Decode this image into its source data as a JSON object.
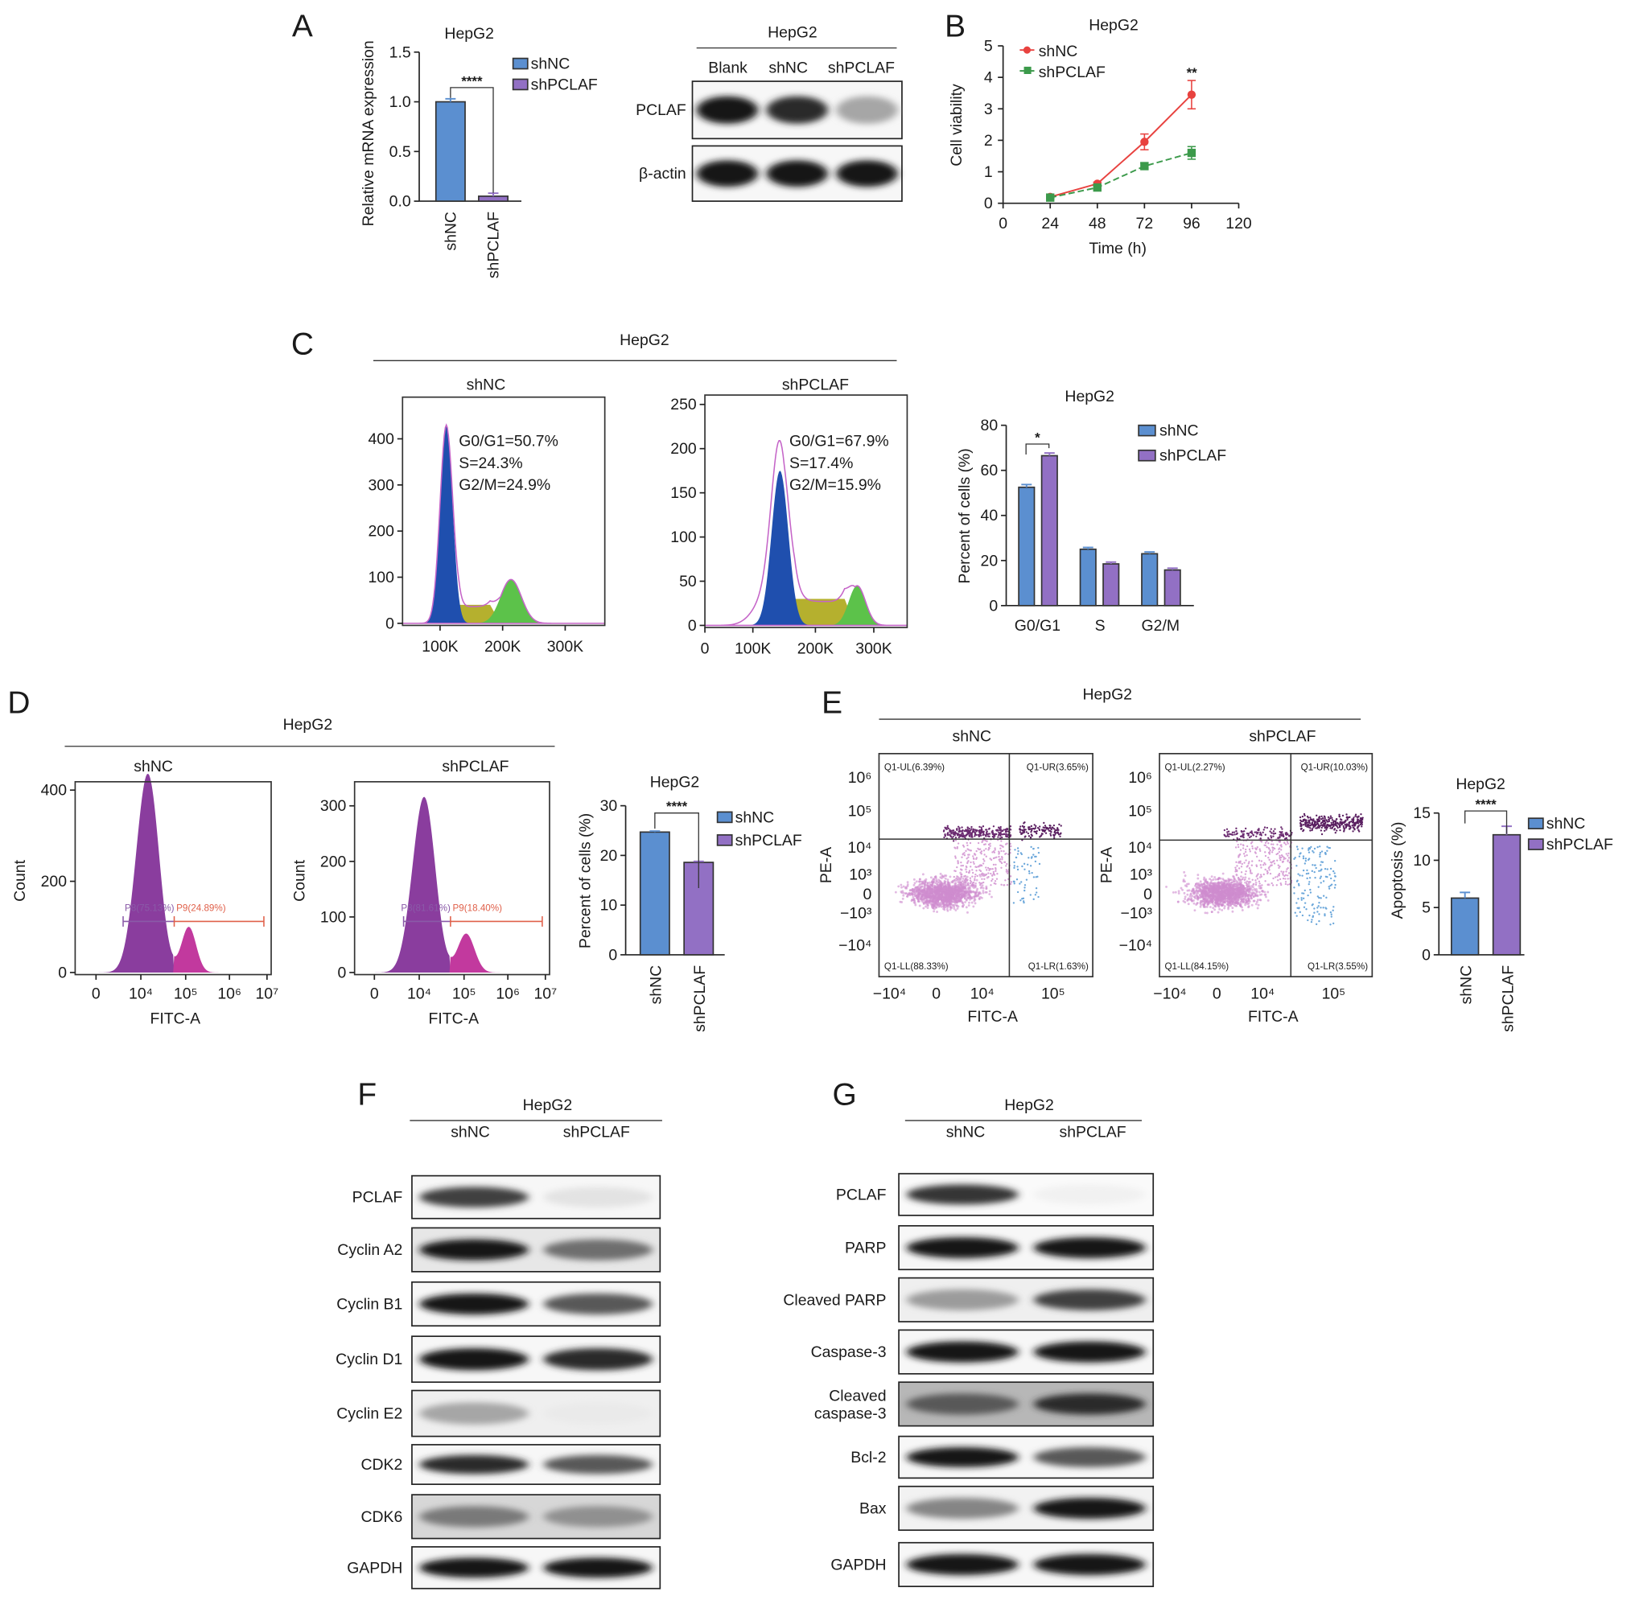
{
  "panel_labels": {
    "A": "A",
    "B": "B",
    "C": "C",
    "D": "D",
    "E": "E",
    "F": "F",
    "G": "G"
  },
  "colors": {
    "shNC": "#5b8fd0",
    "shPCLAF": "#9270c4",
    "line_shNC": "#e8423f",
    "line_shPCLAF": "#3c9a4b",
    "g1": "#1f4fae",
    "s": "#b5b02e",
    "g2": "#5cc24a",
    "outline": "#c565c8",
    "p8": "#8a3d9e",
    "p9": "#c2399e"
  },
  "chart_data": [
    {
      "id": "A_mrna",
      "type": "bar",
      "title": "HepG2",
      "ylabel": "Relative mRNA expression",
      "categories": [
        "shNC",
        "shPCLAF"
      ],
      "values": [
        1.0,
        0.05
      ],
      "errors": [
        0.03,
        0.03
      ],
      "ylim": [
        0,
        1.5
      ],
      "yticks": [
        "0.0",
        "0.5",
        "1.0",
        "1.5"
      ],
      "legend": [
        "shNC",
        "shPCLAF"
      ],
      "significance": "****"
    },
    {
      "id": "B_viability",
      "type": "line",
      "title": "HepG2",
      "xlabel": "Time (h)",
      "ylabel": "Cell viability",
      "x": [
        24,
        48,
        72,
        96
      ],
      "xlim": [
        0,
        120
      ],
      "ylim": [
        0,
        5
      ],
      "xticks": [
        "0",
        "24",
        "48",
        "72",
        "96",
        "120"
      ],
      "yticks": [
        "0",
        "1",
        "2",
        "3",
        "4",
        "5"
      ],
      "series": [
        {
          "name": "shNC",
          "values": [
            0.2,
            0.62,
            1.95,
            3.45
          ],
          "errors": [
            0.03,
            0.05,
            0.25,
            0.45
          ]
        },
        {
          "name": "shPCLAF",
          "values": [
            0.18,
            0.5,
            1.18,
            1.6
          ],
          "errors": [
            0.03,
            0.05,
            0.1,
            0.2
          ]
        }
      ],
      "significance": "**"
    },
    {
      "id": "C_cycle",
      "type": "bar",
      "title": "HepG2",
      "ylabel": "Percent of cells (%)",
      "categories": [
        "G0/G1",
        "S",
        "G2/M"
      ],
      "ylim": [
        0,
        80
      ],
      "yticks": [
        "0",
        "20",
        "40",
        "60",
        "80"
      ],
      "series": [
        {
          "name": "shNC",
          "values": [
            52.5,
            25.0,
            23.0
          ],
          "errors": [
            1.2,
            0.8,
            0.8
          ]
        },
        {
          "name": "shPCLAF",
          "values": [
            66.5,
            18.5,
            15.8
          ],
          "errors": [
            1.2,
            0.8,
            0.8
          ]
        }
      ],
      "significance": "*"
    },
    {
      "id": "D_percent",
      "type": "bar",
      "title": "HepG2",
      "ylabel": "Percent of cells (%)",
      "categories": [
        "shNC",
        "shPCLAF"
      ],
      "values": [
        24.7,
        18.6
      ],
      "errors": [
        0.2,
        0.2
      ],
      "ylim": [
        0,
        30
      ],
      "yticks": [
        "0",
        "10",
        "20",
        "30"
      ],
      "legend": [
        "shNC",
        "shPCLAF"
      ],
      "significance": "****"
    },
    {
      "id": "E_apoptosis",
      "type": "bar",
      "title": "HepG2",
      "ylabel": "Apoptosis (%)",
      "categories": [
        "shNC",
        "shPCLAF"
      ],
      "values": [
        6.0,
        12.7
      ],
      "errors": [
        0.6,
        0.9
      ],
      "ylim": [
        0,
        15
      ],
      "yticks": [
        "0",
        "5",
        "10",
        "15"
      ],
      "legend": [
        "shNC",
        "shPCLAF"
      ],
      "significance": "****"
    }
  ],
  "panelA_blot": {
    "title": "HepG2",
    "lanes": [
      "Blank",
      "shNC",
      "shPCLAF"
    ],
    "rows": [
      {
        "label": "PCLAF",
        "bands": [
          1.0,
          0.9,
          0.35
        ]
      },
      {
        "label": "β-actin",
        "bands": [
          1.0,
          1.0,
          1.0
        ]
      }
    ]
  },
  "panelC": {
    "title": "HepG2",
    "hist": [
      {
        "title": "shNC",
        "yticks": [
          "0",
          "100",
          "200",
          "300",
          "400"
        ],
        "xticks": [
          "100K",
          "200K",
          "300K"
        ],
        "stats": [
          "G0/G1=50.7%",
          "S=24.3%",
          "G2/M=24.9%"
        ]
      },
      {
        "title": "shPCLAF",
        "yticks": [
          "0",
          "50",
          "100",
          "150",
          "200",
          "250"
        ],
        "xticks": [
          "0",
          "100K",
          "200K",
          "300K"
        ],
        "stats": [
          "G0/G1=67.9%",
          "S=17.4%",
          "G2/M=15.9%"
        ]
      }
    ]
  },
  "panelD": {
    "title": "HepG2",
    "xlabel": "FITC-A",
    "ylabel": "Count",
    "xticks": [
      "0",
      "10⁴",
      "10⁵",
      "10⁶",
      "10⁷"
    ],
    "hist": [
      {
        "title": "shNC",
        "yticks": [
          "0",
          "200",
          "400"
        ],
        "gates": [
          "P8(75.13%)",
          "P9(24.89%)"
        ]
      },
      {
        "title": "shPCLAF",
        "yticks": [
          "0",
          "100",
          "200",
          "300"
        ],
        "gates": [
          "P8(81.61%)",
          "P9(18.40%)"
        ]
      }
    ]
  },
  "panelE": {
    "title": "HepG2",
    "xlabel": "FITC-A",
    "ylabel": "PE-A",
    "xticks": [
      "−10⁴",
      "0",
      "10⁴",
      "10⁵"
    ],
    "yticks": [
      "10⁶",
      "10⁵",
      "10⁴",
      "10³",
      "0",
      "−10³",
      "−10⁴"
    ],
    "plots": [
      {
        "title": "shNC",
        "quadrants": [
          "Q1-UL(6.39%)",
          "Q1-UR(3.65%)",
          "Q1-LL(88.33%)",
          "Q1-LR(1.63%)"
        ]
      },
      {
        "title": "shPCLAF",
        "quadrants": [
          "Q1-UL(2.27%)",
          "Q1-UR(10.03%)",
          "Q1-LL(84.15%)",
          "Q1-LR(3.55%)"
        ]
      }
    ]
  },
  "panelF_blot": {
    "title": "HepG2",
    "lanes": [
      "shNC",
      "shPCLAF"
    ],
    "rows": [
      {
        "label": "PCLAF",
        "bands": [
          0.8,
          0.08
        ],
        "bg": 0.05
      },
      {
        "label": "Cyclin A2",
        "bands": [
          1.0,
          0.6
        ],
        "bg": 0.15
      },
      {
        "label": "Cyclin B1",
        "bands": [
          1.0,
          0.7
        ],
        "bg": 0.05
      },
      {
        "label": "Cyclin D1",
        "bands": [
          1.0,
          0.9
        ],
        "bg": 0.05
      },
      {
        "label": "Cyclin E2",
        "bands": [
          0.35,
          0.05
        ],
        "bg": 0.1
      },
      {
        "label": "CDK2",
        "bands": [
          0.9,
          0.7
        ],
        "bg": 0.05
      },
      {
        "label": "CDK6",
        "bands": [
          0.55,
          0.45
        ],
        "bg": 0.25
      },
      {
        "label": "GAPDH",
        "bands": [
          1.0,
          1.0
        ],
        "bg": 0.05
      }
    ]
  },
  "panelG_blot": {
    "title": "HepG2",
    "lanes": [
      "shNC",
      "shPCLAF"
    ],
    "rows": [
      {
        "label": "PCLAF",
        "bands": [
          0.85,
          0.02
        ],
        "bg": 0.03
      },
      {
        "label": "PARP",
        "bands": [
          1.0,
          1.0
        ],
        "bg": 0.05
      },
      {
        "label": "Cleaved PARP",
        "bands": [
          0.4,
          0.8
        ],
        "bg": 0.1
      },
      {
        "label": "Caspase-3",
        "bands": [
          1.0,
          1.0
        ],
        "bg": 0.05
      },
      {
        "label": "Cleaved caspase-3",
        "label_lines": [
          "Cleaved",
          "caspase-3"
        ],
        "bands": [
          0.7,
          0.9
        ],
        "bg": 0.45
      },
      {
        "label": "Bcl-2",
        "bands": [
          1.0,
          0.7
        ],
        "bg": 0.05
      },
      {
        "label": "Bax",
        "bands": [
          0.5,
          1.0
        ],
        "bg": 0.08
      },
      {
        "label": "GAPDH",
        "bands": [
          1.0,
          1.0
        ],
        "bg": 0.05
      }
    ]
  }
}
